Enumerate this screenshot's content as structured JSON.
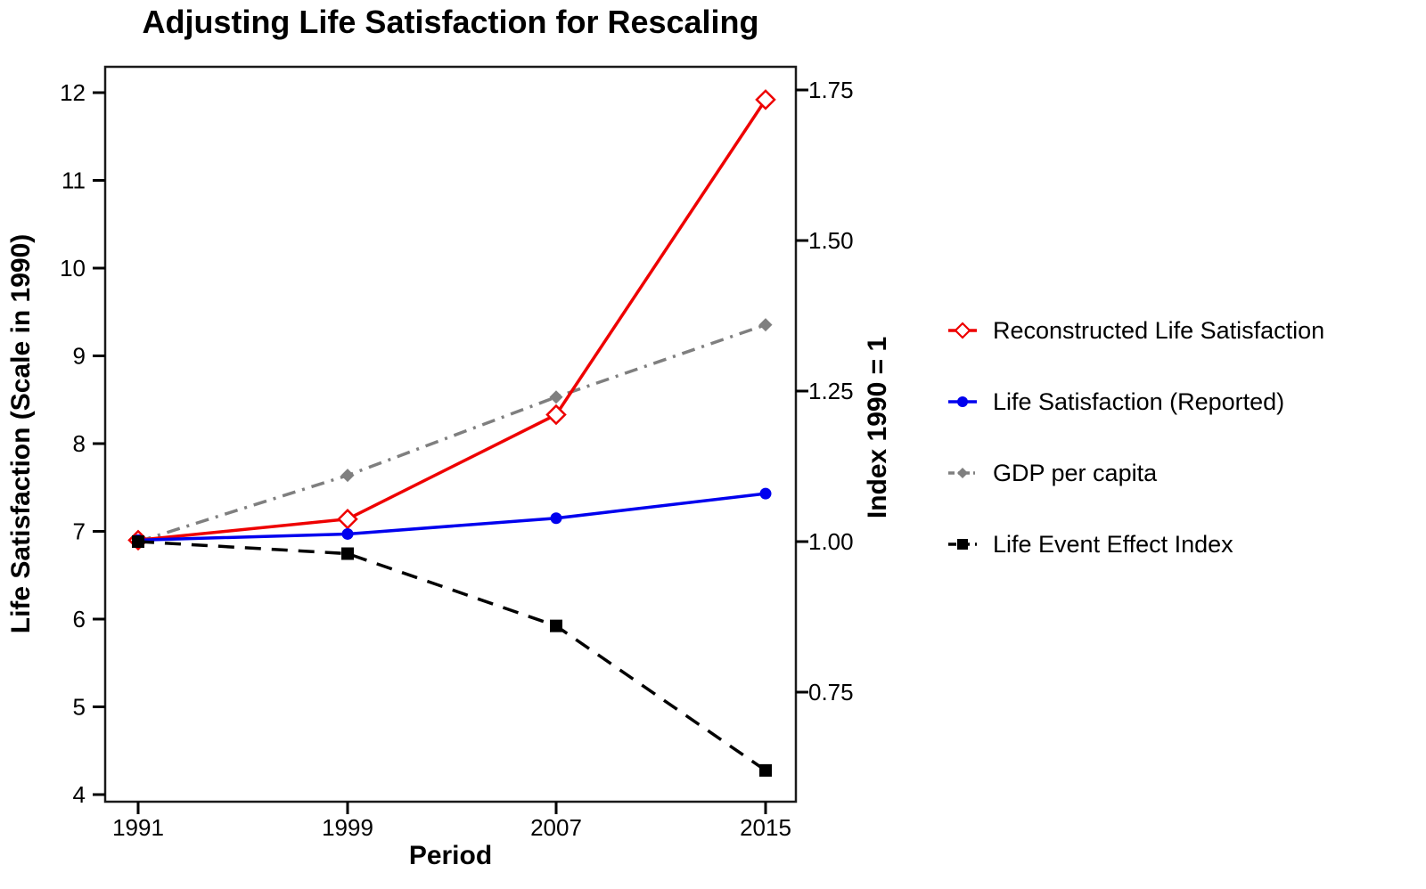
{
  "chart_data": {
    "type": "line",
    "title": "Adjusting Life Satisfaction for Rescaling",
    "xlabel": "Period",
    "ylabel_left": "Life Satisfaction (Scale in 1990)",
    "ylabel_right": "Index 1990 = 1",
    "x_categories": [
      "1991",
      "1999",
      "2007",
      "2015"
    ],
    "left_axis": {
      "min": 4,
      "max": 12,
      "ticks": [
        4,
        5,
        6,
        7,
        8,
        9,
        10,
        11,
        12
      ]
    },
    "right_axis": {
      "min": 0.75,
      "max": 1.75,
      "tick_labels": [
        "0.75",
        "1.00",
        "1.25",
        "1.50",
        "1.75"
      ],
      "tick_values": [
        0.75,
        1.0,
        1.25,
        1.5,
        1.75
      ]
    },
    "grid": false,
    "legend_position": "right-outside",
    "series": [
      {
        "name": "Reconstructed Life Satisfaction",
        "axis": "left",
        "color": "#ee0000",
        "marker": "open-diamond",
        "linestyle": "solid",
        "values": [
          6.9,
          7.14,
          8.33,
          11.92
        ]
      },
      {
        "name": "Life Satisfaction (Reported)",
        "axis": "left",
        "color": "#0000ee",
        "marker": "circle",
        "linestyle": "solid",
        "values": [
          6.9,
          6.97,
          7.15,
          7.43
        ]
      },
      {
        "name": "GDP per capita",
        "axis": "right",
        "color": "#7f7f7f",
        "marker": "diamond",
        "linestyle": "dashdot",
        "values": [
          1.0,
          1.11,
          1.24,
          1.36
        ]
      },
      {
        "name": "Life Event Effect Index",
        "axis": "right",
        "color": "#000000",
        "marker": "square",
        "linestyle": "dashed",
        "values": [
          1.0,
          0.98,
          0.86,
          0.62
        ]
      }
    ]
  }
}
